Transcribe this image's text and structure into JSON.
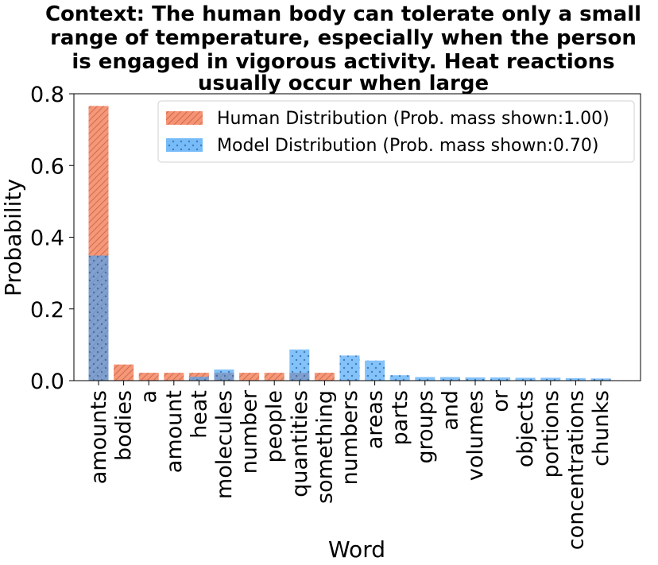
{
  "chart_data": {
    "type": "bar",
    "title_lines": [
      "Context: The human body can tolerate only a small",
      "range of temperature, especially when the person",
      "is engaged in vigorous activity. Heat reactions",
      "usually occur when large"
    ],
    "xlabel": "Word",
    "ylabel": "Probability",
    "ylim": [
      0,
      0.8
    ],
    "yticks": [
      "0.0",
      "0.2",
      "0.4",
      "0.6",
      "0.8"
    ],
    "categories": [
      "amounts",
      "bodies",
      "a",
      "amount",
      "heat",
      "molecules",
      "number",
      "people",
      "quantities",
      "something",
      "numbers",
      "areas",
      "parts",
      "groups",
      "and",
      "volumes",
      "or",
      "objects",
      "portions",
      "concentrations",
      "chunks"
    ],
    "series": [
      {
        "name": "Human Distribution (Prob. mass shown:1.00)",
        "color": "#f4805a",
        "hatch": "diagonal",
        "values": [
          0.766,
          0.045,
          0.022,
          0.022,
          0.022,
          0.022,
          0.022,
          0.022,
          0.022,
          0.022,
          0.0,
          0.0,
          0.0,
          0.0,
          0.0,
          0.0,
          0.0,
          0.0,
          0.0,
          0.0,
          0.0
        ]
      },
      {
        "name": "Model Distribution (Prob. mass shown:0.70)",
        "color": "#4aa5f7",
        "hatch": "dots",
        "values": [
          0.349,
          0.0,
          0.0,
          0.0,
          0.011,
          0.031,
          0.0,
          0.0,
          0.087,
          0.0,
          0.07,
          0.056,
          0.015,
          0.01,
          0.01,
          0.009,
          0.009,
          0.008,
          0.008,
          0.007,
          0.006
        ]
      }
    ],
    "legend_position": "top-right"
  }
}
